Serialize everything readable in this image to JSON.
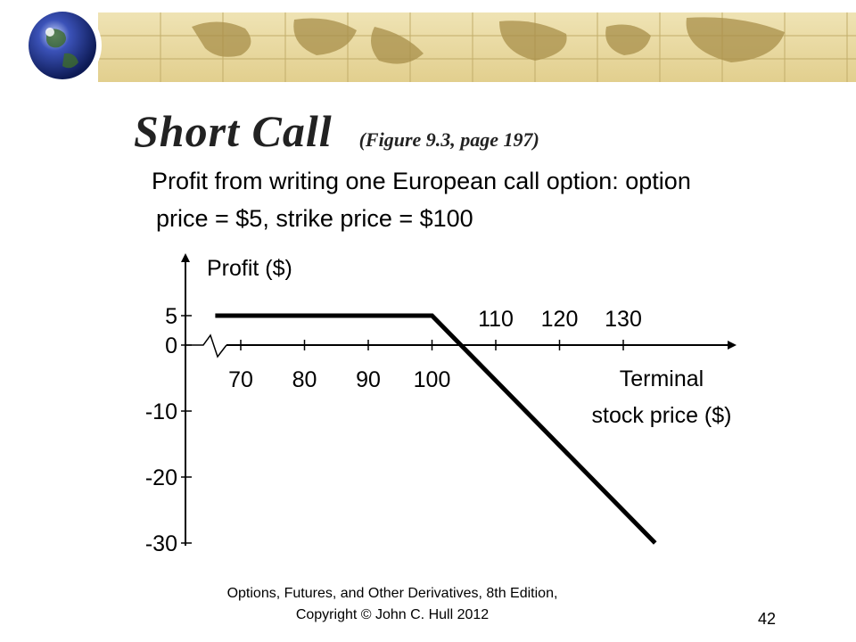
{
  "slide": {
    "title": "Short Call",
    "figure_ref": "(Figure 9.3, page 197)",
    "description_line1": "Profit from writing one European call option: option",
    "description_line2": "price = $5, strike price = $100",
    "footer_line1": "Options, Futures, and Other Derivatives, 8th Edition,",
    "footer_line2": "Copyright © John C. Hull 2012",
    "page_number": "42"
  },
  "chart_data": {
    "type": "line",
    "ylabel": "Profit ($)",
    "xlabel_line1": "Terminal",
    "xlabel_line2": "stock price ($)",
    "x_tick_labels_below": [
      "70",
      "80",
      "90",
      "100"
    ],
    "x_tick_labels_above": [
      "110",
      "120",
      "130"
    ],
    "y_tick_labels": [
      "5",
      "0",
      "-10",
      "-20",
      "-30"
    ],
    "series": [
      {
        "x": [
          66,
          100,
          135
        ],
        "y": [
          5,
          5,
          -30
        ]
      }
    ]
  }
}
